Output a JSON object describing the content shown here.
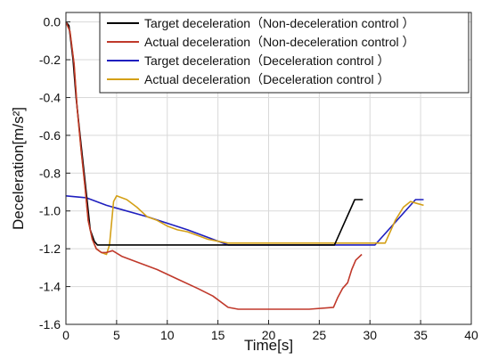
{
  "chart_data": {
    "type": "line",
    "xlabel": "Time[s]",
    "ylabel": "Deceleration[m/s²]",
    "xlim": [
      0,
      40
    ],
    "ylim": [
      -1.6,
      0.05
    ],
    "xticks": [
      0,
      5,
      10,
      15,
      20,
      25,
      30,
      35,
      40
    ],
    "yticks": [
      0.0,
      -0.2,
      -0.4,
      -0.6,
      -0.8,
      -1.0,
      -1.2,
      -1.4,
      -1.6
    ],
    "xtick_labels": [
      "0",
      "5",
      "10",
      "15",
      "20",
      "25",
      "30",
      "35",
      "40"
    ],
    "ytick_labels": [
      "0.0",
      "-0.2",
      "-0.4",
      "-0.6",
      "-0.8",
      "-1.0",
      "-1.2",
      "-1.4",
      "-1.6"
    ],
    "grid": true,
    "legend_position": "top-right",
    "series": [
      {
        "name": "Target deceleration（Non-deceleration control ）",
        "color": "#000000",
        "x": [
          0,
          0.3,
          0.7,
          1.0,
          1.4,
          1.8,
          2.1,
          2.4,
          2.8,
          3.1,
          3.5,
          16.0,
          26.5,
          28.5,
          29.3
        ],
        "y": [
          0.0,
          -0.02,
          -0.2,
          -0.4,
          -0.6,
          -0.8,
          -0.95,
          -1.1,
          -1.16,
          -1.18,
          -1.18,
          -1.18,
          -1.18,
          -0.94,
          -0.94
        ]
      },
      {
        "name": "Actual deceleration（Non-deceleration control ）",
        "color": "#c0392b",
        "x": [
          0,
          0.4,
          0.8,
          1.1,
          1.5,
          1.9,
          2.2,
          2.6,
          3.0,
          3.5,
          4.0,
          4.6,
          5.5,
          7.0,
          9.0,
          11.0,
          13.0,
          14.5,
          16.0,
          17.0,
          20.0,
          24.0,
          26.4,
          26.8,
          27.3,
          27.8,
          28.2,
          28.6,
          29.2
        ],
        "y": [
          0.0,
          -0.05,
          -0.22,
          -0.45,
          -0.68,
          -0.88,
          -1.05,
          -1.15,
          -1.2,
          -1.22,
          -1.22,
          -1.21,
          -1.24,
          -1.27,
          -1.31,
          -1.36,
          -1.41,
          -1.45,
          -1.51,
          -1.52,
          -1.52,
          -1.52,
          -1.51,
          -1.46,
          -1.41,
          -1.38,
          -1.31,
          -1.26,
          -1.23
        ]
      },
      {
        "name": "Target deceleration（Deceleration control ）",
        "color": "#1f1fbf",
        "x": [
          0,
          2.0,
          4.0,
          8.0,
          12.0,
          16.0,
          20.0,
          26.0,
          30.5,
          34.5,
          35.3
        ],
        "y": [
          -0.92,
          -0.93,
          -0.97,
          -1.03,
          -1.1,
          -1.18,
          -1.18,
          -1.18,
          -1.18,
          -0.94,
          -0.94
        ]
      },
      {
        "name": "Actual deceleration（Deceleration control ）",
        "color": "#d4a017",
        "x": [
          0,
          0.4,
          0.8,
          1.1,
          1.5,
          1.9,
          2.2,
          2.6,
          3.0,
          3.5,
          4.0,
          4.3,
          4.7,
          5.0,
          6.0,
          7.0,
          8.0,
          9.0,
          10.0,
          11.0,
          12.0,
          13.0,
          14.0,
          15.0,
          16.0,
          20.0,
          25.0,
          30.0,
          31.5,
          32.5,
          33.3,
          34.0,
          34.6,
          35.3
        ],
        "y": [
          0.0,
          -0.05,
          -0.22,
          -0.45,
          -0.68,
          -0.88,
          -1.05,
          -1.15,
          -1.2,
          -1.22,
          -1.23,
          -1.18,
          -0.95,
          -0.92,
          -0.94,
          -0.98,
          -1.03,
          -1.05,
          -1.08,
          -1.1,
          -1.11,
          -1.13,
          -1.15,
          -1.16,
          -1.17,
          -1.17,
          -1.17,
          -1.17,
          -1.17,
          -1.05,
          -0.98,
          -0.95,
          -0.96,
          -0.97
        ]
      }
    ]
  }
}
